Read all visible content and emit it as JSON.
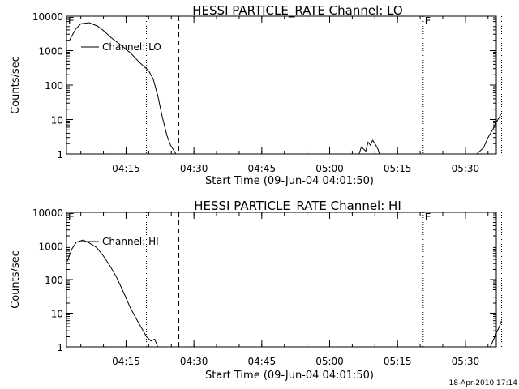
{
  "footer_timestamp": "18-Apr-2010 17:14",
  "chart_data": [
    {
      "type": "line",
      "title": "HESSI PARTICLE_RATE Channel: LO",
      "xlabel": "Start Time (09-Jun-04 04:01:50)",
      "ylabel": "Counts/sec",
      "yscale": "log",
      "ylim": [
        1,
        10000
      ],
      "xlim_minutes_after_start": [
        0,
        95
      ],
      "xticks": [
        "04:15",
        "04:30",
        "04:45",
        "05:00",
        "05:15",
        "05:30"
      ],
      "yticks": [
        "1",
        "10",
        "100",
        "1000",
        "10000"
      ],
      "legend": {
        "label": "Channel: LO",
        "placement": "upper-left"
      },
      "markers": [
        {
          "time": "04:19:30",
          "style": "dotted",
          "label": ""
        },
        {
          "time": "04:26:40",
          "style": "dashed",
          "label": ""
        },
        {
          "time": "05:20:40",
          "style": "dotted",
          "label": "E"
        },
        {
          "time": "05:38:00",
          "style": "dotted",
          "label": ""
        },
        {
          "time": "04:01:50",
          "style": "none",
          "label": "E"
        }
      ],
      "series": [
        {
          "name": "Channel: LO",
          "times": [
            "04:02:30",
            "04:03:50",
            "04:05:00",
            "04:06:50",
            "04:08:40",
            "04:10:00",
            "04:12:00",
            "04:14:00",
            "04:16:00",
            "04:18:00",
            "04:19:00",
            "04:20:00",
            "04:21:00",
            "04:22:00",
            "04:23:00",
            "04:24:00",
            "04:24:50",
            "04:25:40",
            "04:26:00",
            "05:06:30",
            "05:07:00",
            "05:08:00",
            "05:08:30",
            "05:09:00",
            "05:09:30",
            "05:10:00",
            "05:10:40",
            "05:11:00",
            "05:32:30",
            "05:34:00",
            "05:35:00",
            "05:36:00",
            "05:37:00",
            "05:37:50"
          ],
          "values": [
            2000,
            4200,
            6000,
            6500,
            5200,
            3800,
            2200,
            1400,
            850,
            450,
            340,
            260,
            150,
            50,
            12,
            3.5,
            1.8,
            1.2,
            1,
            1,
            1.6,
            1.2,
            2.2,
            1.8,
            2.5,
            2,
            1.4,
            1,
            1,
            1.5,
            3,
            5,
            9,
            14
          ],
          "segments": [
            [
              0,
              18
            ],
            [
              19,
              27
            ],
            [
              28,
              33
            ]
          ]
        }
      ]
    },
    {
      "type": "line",
      "title": "HESSI PARTICLE_RATE Channel: HI",
      "xlabel": "Start Time (09-Jun-04 04:01:50)",
      "ylabel": "Counts/sec",
      "yscale": "log",
      "ylim": [
        1,
        10000
      ],
      "xlim_minutes_after_start": [
        0,
        95
      ],
      "xticks": [
        "04:15",
        "04:30",
        "04:45",
        "05:00",
        "05:15",
        "05:30"
      ],
      "yticks": [
        "1",
        "10",
        "100",
        "1000",
        "10000"
      ],
      "legend": {
        "label": "Channel: HI",
        "placement": "upper-left"
      },
      "markers": [
        {
          "time": "04:19:30",
          "style": "dotted",
          "label": ""
        },
        {
          "time": "04:26:40",
          "style": "dashed",
          "label": ""
        },
        {
          "time": "05:20:40",
          "style": "dotted",
          "label": "E"
        },
        {
          "time": "05:38:00",
          "style": "dotted",
          "label": ""
        },
        {
          "time": "04:01:50",
          "style": "none",
          "label": "E"
        }
      ],
      "series": [
        {
          "name": "Channel: HI",
          "times": [
            "04:02:00",
            "04:03:00",
            "04:04:00",
            "04:05:30",
            "04:07:00",
            "04:08:30",
            "04:10:00",
            "04:11:30",
            "04:13:00",
            "04:14:30",
            "04:16:00",
            "04:17:30",
            "04:18:30",
            "04:19:30",
            "04:20:30",
            "04:21:20",
            "04:22:00",
            "05:35:30",
            "05:36:30",
            "05:37:30",
            "05:38:00"
          ],
          "values": [
            350,
            800,
            1300,
            1500,
            1200,
            900,
            500,
            250,
            110,
            40,
            14,
            6,
            3.5,
            2,
            1.5,
            1.7,
            1,
            1,
            2,
            4,
            6
          ],
          "segments": [
            [
              0,
              16
            ],
            [
              17,
              20
            ]
          ]
        }
      ]
    }
  ]
}
